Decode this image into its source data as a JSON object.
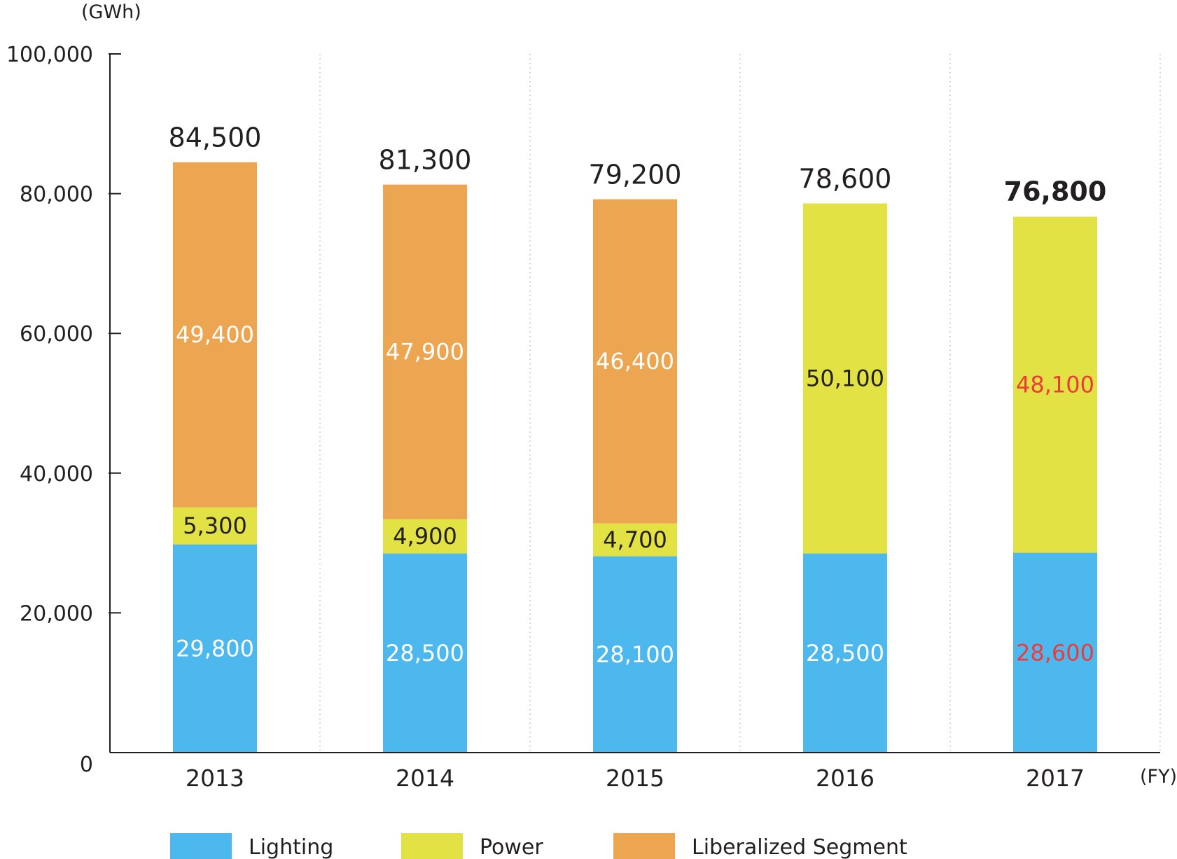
{
  "chart_data": {
    "type": "bar",
    "stacked": true,
    "y_unit": "(GWh)",
    "x_unit": "(FY)",
    "ylim": [
      0,
      100000
    ],
    "yticks": [
      "100,000",
      "80,000",
      "60,000",
      "40,000",
      "20,000",
      "0"
    ],
    "ytick_values": [
      100000,
      80000,
      60000,
      40000,
      20000,
      0
    ],
    "categories": [
      "2013",
      "2014",
      "2015",
      "2016",
      "2017"
    ],
    "totals": [
      84500,
      81300,
      79200,
      78600,
      76800
    ],
    "total_labels": [
      "84,500",
      "81,300",
      "79,200",
      "78,600",
      "76,800"
    ],
    "series": [
      {
        "name": "Lighting",
        "color": "#4db8ee",
        "values": [
          29800,
          28500,
          28100,
          28500,
          28600
        ],
        "labels": [
          "29,800",
          "28,500",
          "28,100",
          "28,500",
          "28,600"
        ]
      },
      {
        "name": "Power",
        "color": "#e2e244",
        "values": [
          5300,
          4900,
          4700,
          50100,
          48100
        ],
        "labels": [
          "5,300",
          "4,900",
          "4,700",
          "50,100",
          "48,100"
        ]
      },
      {
        "name": "Liberalized Segment",
        "color": "#eca652",
        "values": [
          49400,
          47900,
          46400,
          0,
          0
        ],
        "labels": [
          "49,400",
          "47,900",
          "46,400",
          "",
          ""
        ]
      }
    ],
    "highlight_color": "#f03a3a",
    "grid": "vertical dotted separators",
    "legend_position": "bottom"
  }
}
